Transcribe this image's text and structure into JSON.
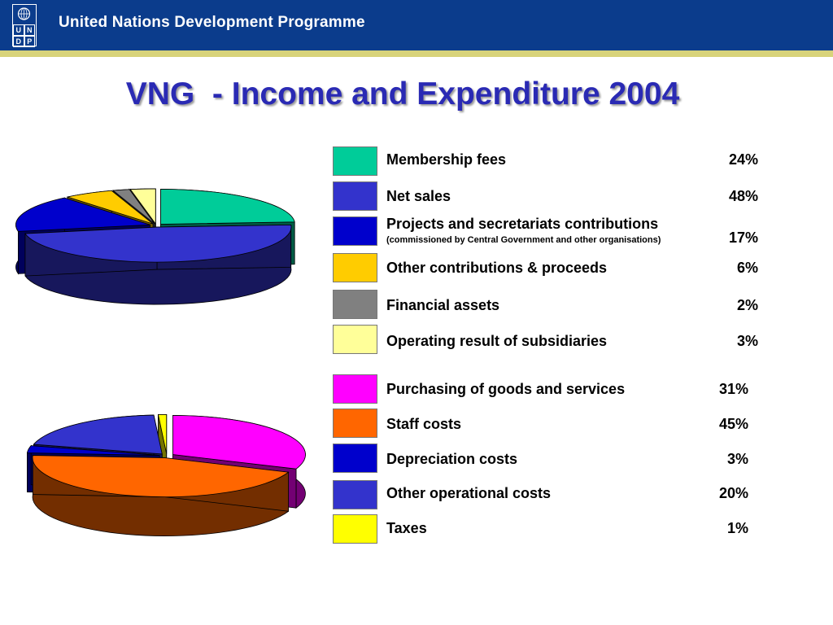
{
  "header": {
    "org_name": "United Nations Development Programme",
    "logo_letters": [
      "U",
      "N",
      "D",
      "P"
    ],
    "logo_icon": "un-emblem-icon",
    "background_color": "#0b3c8c",
    "accent_line_color": "#d8d37a"
  },
  "title": "VNG  - Income and Expenditure 2004",
  "chart_data": [
    {
      "type": "pie",
      "name": "Income",
      "title": "",
      "legend_placement": "right",
      "series": [
        {
          "label": "Membership fees",
          "value": 24,
          "value_label": "24%",
          "color": "#00cc99"
        },
        {
          "label": "Net sales",
          "value": 48,
          "value_label": "48%",
          "color": "#3333cc"
        },
        {
          "label": "Projects and secretariats contributions",
          "sublabel": "(commissioned by Central Government and other organisations)",
          "value": 17,
          "value_label": "17%",
          "color": "#0000cc"
        },
        {
          "label": "Other contributions & proceeds",
          "value": 6,
          "value_label": "6%",
          "color": "#ffcc00"
        },
        {
          "label": "Financial assets",
          "value": 2,
          "value_label": "2%",
          "color": "#808080"
        },
        {
          "label": "Operating result of subsidiaries",
          "value": 3,
          "value_label": "3%",
          "color": "#ffff99"
        }
      ]
    },
    {
      "type": "pie",
      "name": "Expenditure",
      "title": "",
      "legend_placement": "right",
      "series": [
        {
          "label": "Purchasing of goods and services",
          "value": 31,
          "value_label": "31%",
          "color": "#ff00ff"
        },
        {
          "label": "Staff costs",
          "value": 45,
          "value_label": "45%",
          "color": "#ff6600"
        },
        {
          "label": "Depreciation costs",
          "value": 3,
          "value_label": "3%",
          "color": "#0000cc"
        },
        {
          "label": "Other operational costs",
          "value": 20,
          "value_label": "20%",
          "color": "#3333cc"
        },
        {
          "label": "Taxes",
          "value": 1,
          "value_label": "1%",
          "color": "#ffff00"
        }
      ]
    }
  ]
}
